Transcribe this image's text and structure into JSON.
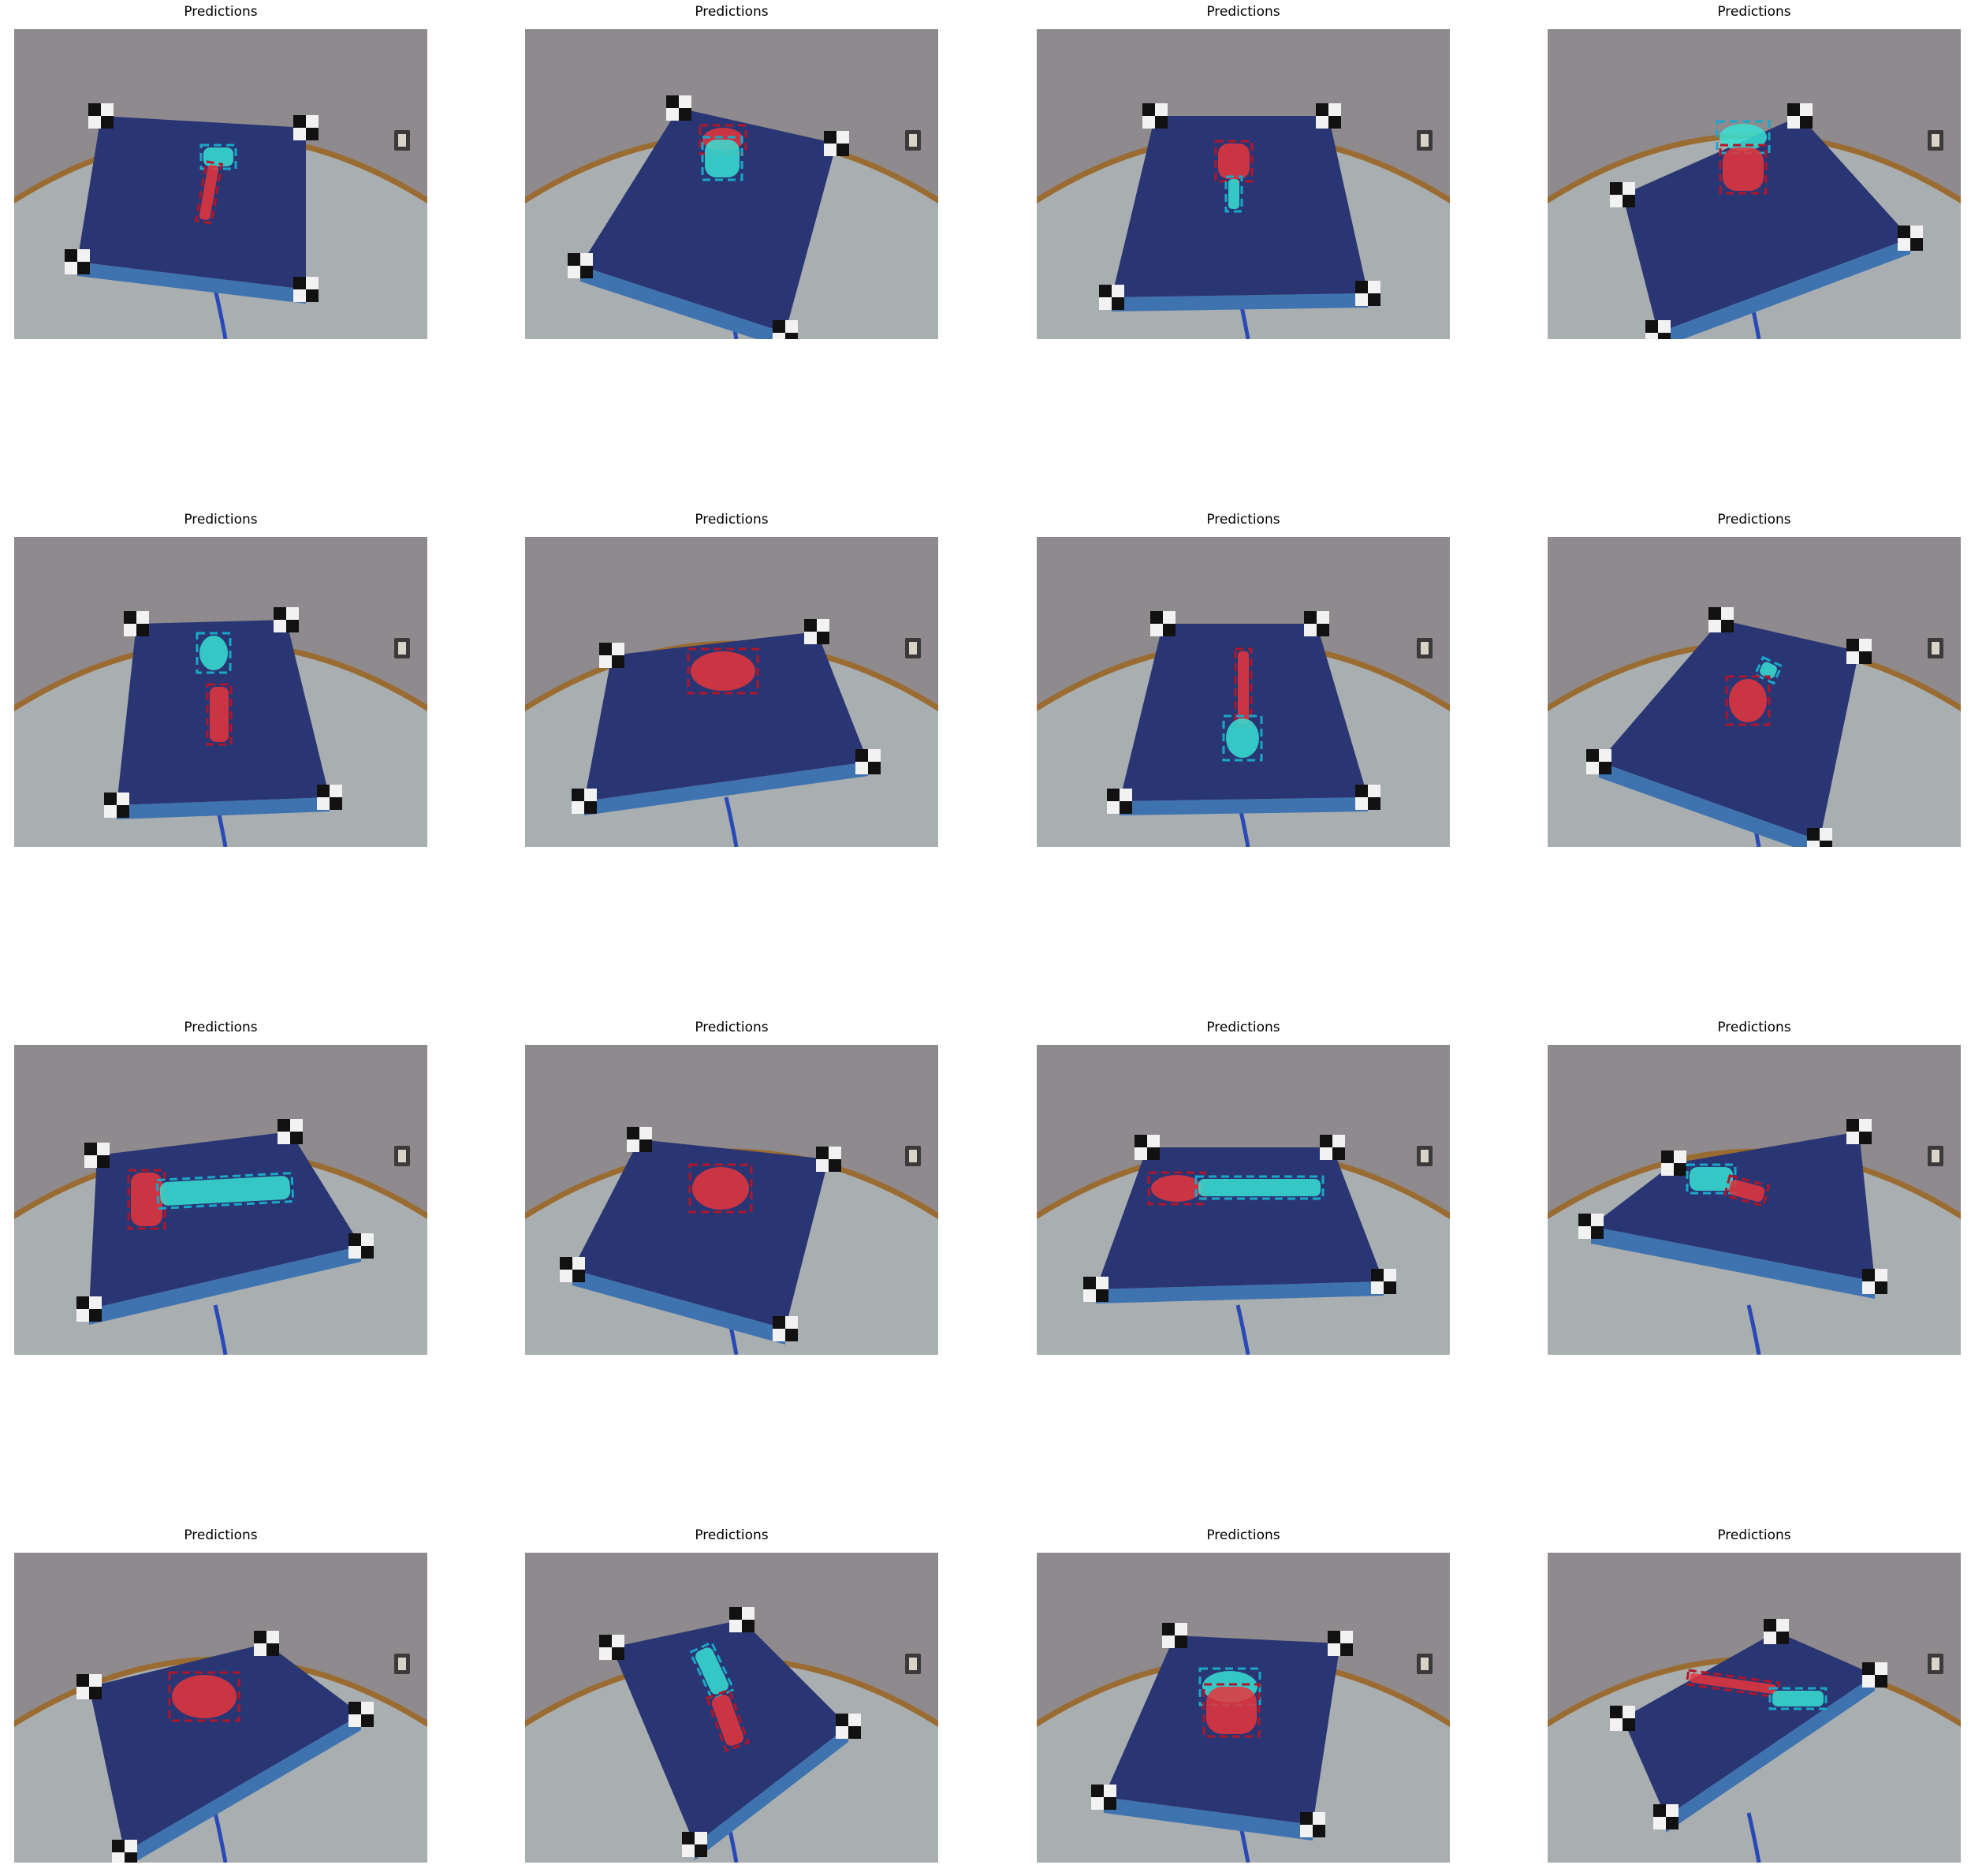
{
  "panel_title": "Predictions",
  "colors": {
    "wall": "#8f8a8d",
    "floor": "#a9aeb0",
    "table_rim": "#9a6c32",
    "board": "#2a3673",
    "board_side": "#3f73b0",
    "cable": "#2b49b5",
    "mask_red": "#e8343a",
    "mask_cyan": "#37e0d4",
    "box_red": "#b0162b",
    "box_cyan": "#1aa8c9",
    "marker_black": "#111111",
    "marker_white": "#f2f2f2"
  },
  "panels": [
    {
      "objects": [
        "cyan tool head",
        "red handle"
      ]
    },
    {
      "objects": [
        "red cup",
        "cyan cup"
      ]
    },
    {
      "objects": [
        "red rectangular object",
        "cyan handle"
      ]
    },
    {
      "objects": [
        "cyan bowl rim",
        "red cup"
      ]
    },
    {
      "objects": [
        "cyan spoon head",
        "red handle"
      ]
    },
    {
      "objects": [
        "red bowl"
      ]
    },
    {
      "objects": [
        "red handle",
        "cyan spoon head"
      ]
    },
    {
      "objects": [
        "cyan small object",
        "red object"
      ]
    },
    {
      "objects": [
        "red hammer head",
        "cyan hammer handle"
      ]
    },
    {
      "objects": [
        "red bowl"
      ]
    },
    {
      "objects": [
        "red brush head",
        "cyan handle"
      ]
    },
    {
      "objects": [
        "cyan scissors handle",
        "red blades"
      ]
    },
    {
      "objects": [
        "red bowl"
      ]
    },
    {
      "objects": [
        "cyan handle",
        "red knife blade"
      ]
    },
    {
      "objects": [
        "cyan bowl rim",
        "red cup"
      ]
    },
    {
      "objects": [
        "red knife blade",
        "cyan handle"
      ]
    }
  ]
}
